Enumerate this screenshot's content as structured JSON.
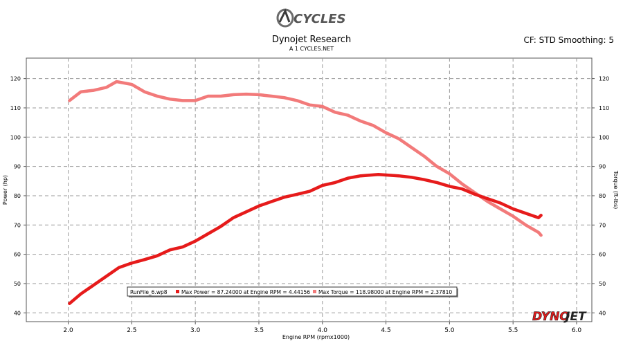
{
  "logo": {
    "text": "CYCLES",
    "icon": "cycles-logo"
  },
  "title": "Dynojet Research",
  "subtitle": "A 1 CYCLES.NET",
  "header_right": "CF: STD Smoothing: 5",
  "brand_mark": "DYNOJET",
  "chart_data": {
    "type": "line",
    "xlabel": "Engine RPM (rpmx1000)",
    "ylabel_left": "Power (hp)",
    "ylabel_right": "Torque (ft-lbs)",
    "xlim": [
      1.67,
      6.12
    ],
    "ylim": [
      37,
      127
    ],
    "xticks": [
      2.0,
      2.5,
      3.0,
      3.5,
      4.0,
      4.5,
      5.0,
      5.5,
      6.0
    ],
    "xtick_labels": [
      "2.0",
      "2.5",
      "3.0",
      "3.5",
      "4.0",
      "4.5",
      "5.0",
      "5.5",
      "6.0"
    ],
    "yticks": [
      40,
      50,
      60,
      70,
      80,
      90,
      100,
      110,
      120
    ],
    "ytick_labels": [
      "40",
      "50",
      "60",
      "70",
      "80",
      "90",
      "100",
      "110",
      "120"
    ],
    "grid": true,
    "legend": {
      "placement": "bottom-left",
      "file": "RunFile_6.wp8",
      "entries": [
        "Max Power = 87.24000 at Engine RPM = 4.44156",
        "Max Torque = 118.98000 at Engine RPM = 2.37810"
      ]
    },
    "series": [
      {
        "name": "Power",
        "color": "#e61b1b",
        "x": [
          2.01,
          2.1,
          2.2,
          2.3,
          2.4,
          2.5,
          2.6,
          2.7,
          2.8,
          2.9,
          3.0,
          3.1,
          3.2,
          3.3,
          3.4,
          3.5,
          3.6,
          3.7,
          3.8,
          3.9,
          4.0,
          4.1,
          4.2,
          4.3,
          4.44,
          4.6,
          4.7,
          4.8,
          4.9,
          5.0,
          5.1,
          5.2,
          5.3,
          5.4,
          5.5,
          5.6,
          5.7,
          5.72
        ],
        "values": [
          43.2,
          46.5,
          49.5,
          52.5,
          55.5,
          57.0,
          58.2,
          59.5,
          61.5,
          62.5,
          64.5,
          67.0,
          69.5,
          72.5,
          74.5,
          76.5,
          78.0,
          79.5,
          80.5,
          81.5,
          83.5,
          84.5,
          86.0,
          86.8,
          87.24,
          86.8,
          86.3,
          85.5,
          84.5,
          83.2,
          82.3,
          80.5,
          79.0,
          77.5,
          75.5,
          74.0,
          72.5,
          73.3
        ]
      },
      {
        "name": "Torque",
        "color": "#f27a7a",
        "x": [
          2.01,
          2.1,
          2.2,
          2.3,
          2.38,
          2.5,
          2.6,
          2.7,
          2.8,
          2.9,
          3.0,
          3.1,
          3.2,
          3.3,
          3.4,
          3.5,
          3.6,
          3.7,
          3.8,
          3.9,
          4.0,
          4.1,
          4.2,
          4.3,
          4.4,
          4.5,
          4.6,
          4.7,
          4.8,
          4.9,
          5.0,
          5.1,
          5.2,
          5.3,
          5.4,
          5.5,
          5.6,
          5.7,
          5.72
        ],
        "values": [
          112.5,
          115.5,
          116.0,
          117.0,
          118.98,
          118.0,
          115.5,
          114.0,
          113.0,
          112.5,
          112.5,
          114.0,
          114.0,
          114.5,
          114.7,
          114.5,
          114.0,
          113.5,
          112.5,
          111.0,
          110.5,
          108.5,
          107.5,
          105.5,
          104.0,
          101.5,
          99.5,
          96.5,
          93.5,
          90.0,
          87.5,
          84.0,
          81.0,
          78.0,
          75.5,
          73.0,
          70.0,
          67.5,
          66.5
        ]
      }
    ]
  }
}
